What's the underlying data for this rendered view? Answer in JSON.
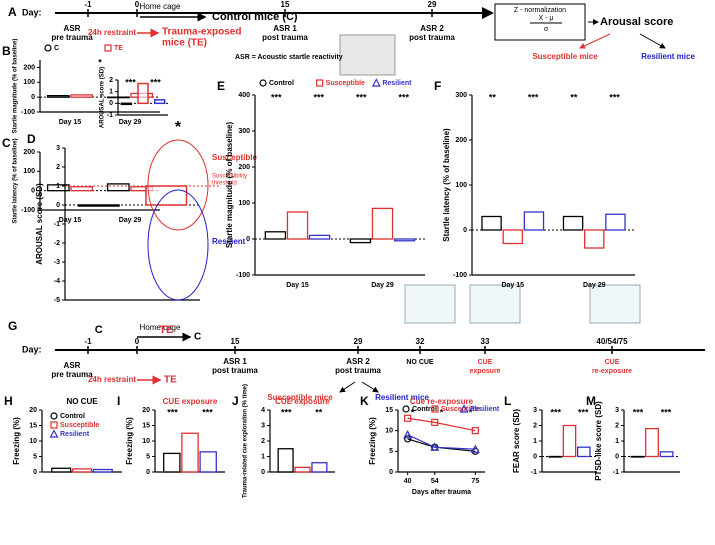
{
  "timeline_a": {
    "label": "A",
    "day": "Day:",
    "d_m1": "-1",
    "d0": "0",
    "d15": "15",
    "d29": "29",
    "home": "Home cage",
    "control": "Control mice (C)",
    "asr_pre": [
      "ASR",
      "pre trauma"
    ],
    "restraint": "24h restraint",
    "te": [
      "Trauma-exposed",
      "mice (TE)"
    ],
    "asr1": [
      "ASR 1",
      "post trauma"
    ],
    "asr_def": "ASR = Acoustic startle reactivity",
    "asr2": [
      "ASR 2",
      "post trauma"
    ],
    "znorm": "Z - normalization",
    "num": "X - μ",
    "den": "σ",
    "arousal": "Arousal score",
    "susceptible": "Susceptible mice",
    "resilient": "Resilient mice"
  },
  "timeline_g": {
    "label": "G",
    "day": "Day:",
    "d_m1": "-1",
    "d0": "0",
    "d15": "15",
    "d29": "29",
    "d32": "32",
    "d33": "33",
    "d40": "40/54/75",
    "home": "Home cage",
    "c": "C",
    "asr_pre": [
      "ASR",
      "pre trauma"
    ],
    "restraint": "24h restraint",
    "te": "TE",
    "asr1": [
      "ASR 1",
      "post trauma"
    ],
    "asr2": [
      "ASR 2",
      "post trauma"
    ],
    "nocue": "NO CUE",
    "cue": [
      "CUE",
      "exposure"
    ],
    "recue": [
      "CUE",
      "re-exposure"
    ],
    "susceptible": "Susceptible mice",
    "resilient": "Resilient  mice"
  },
  "charts": [
    {
      "label": "B",
      "type": "bar",
      "ylabel": "Startle magnitude (% of baseline)",
      "categories": [
        "Day 15",
        "Day 29"
      ],
      "series": [
        {
          "name": "C",
          "color": "#000000",
          "values": [
            10,
            0
          ]
        },
        {
          "name": "TE",
          "color": "#e03030",
          "values": [
            15,
            25
          ]
        }
      ],
      "ylim": [
        -100,
        250
      ],
      "yticks": [
        -100,
        0,
        100,
        200
      ],
      "legend": "top",
      "annotations": [
        "*"
      ]
    },
    {
      "label": "C",
      "type": "bar",
      "ylabel": "Startle latency (% of baseline)",
      "categories": [
        "Day 15",
        "Day 29"
      ],
      "series": [
        {
          "color": "#000000",
          "values": [
            30,
            35
          ]
        },
        {
          "color": "#e03030",
          "values": [
            20,
            20
          ]
        }
      ],
      "ylim": [
        -100,
        200
      ],
      "yticks": [
        -100,
        0,
        100,
        200
      ]
    },
    {
      "label": "D",
      "type": "bar",
      "ylabel": "AROUSAL score (SD)",
      "categories": [
        "C",
        "TE"
      ],
      "values": [
        0,
        1
      ],
      "colors": [
        "#000000",
        "#e03030"
      ],
      "ylim": [
        -5,
        3
      ],
      "yticks": [
        -5,
        -4,
        -3,
        -2,
        -1,
        0,
        1,
        2,
        3
      ],
      "threshold": 1,
      "notes": {
        "susceptible": "Susceptible",
        "threshold": [
          "Susceptibility",
          "threshold"
        ],
        "resilient": "Resilient",
        "star": "*"
      }
    },
    {
      "type": "bar",
      "ylabel": "AROUSAL score (SD)",
      "categories": [
        null,
        null,
        null
      ],
      "values": [
        0,
        1.7,
        0.3
      ],
      "colors": [
        "#000000",
        "#e03030",
        "#3333cc"
      ],
      "ylim": [
        -1,
        2
      ],
      "yticks": [
        -1,
        0,
        1,
        2
      ],
      "annotations": [
        "***",
        "***"
      ]
    },
    {
      "label": "E",
      "type": "bar",
      "ylabel": "Startle magnitude (% of baseline)",
      "categories": [
        "Day 15",
        "Day 29"
      ],
      "series": [
        {
          "name": "Control",
          "color": "#000000",
          "values": [
            20,
            -10
          ]
        },
        {
          "name": "Susceptible",
          "color": "#e03030",
          "values": [
            75,
            85
          ]
        },
        {
          "name": "Resilient",
          "color": "#3333cc",
          "values": [
            10,
            -5
          ]
        }
      ],
      "ylim": [
        -100,
        400
      ],
      "yticks": [
        -100,
        0,
        100,
        200,
        300,
        400
      ],
      "legend": "top",
      "annotations": [
        "***",
        "***",
        "***",
        "***"
      ]
    },
    {
      "label": "F",
      "type": "bar",
      "ylabel": "Startle latency (% of baseline)",
      "categories": [
        "Day 15",
        "Day 29"
      ],
      "series": [
        {
          "color": "#000000",
          "values": [
            30,
            30
          ]
        },
        {
          "color": "#e03030",
          "values": [
            -30,
            -40
          ]
        },
        {
          "color": "#3333cc",
          "values": [
            40,
            35
          ]
        }
      ],
      "ylim": [
        -100,
        300
      ],
      "yticks": [
        -100,
        0,
        100,
        200,
        300
      ],
      "annotations": [
        "**",
        "***",
        "**",
        "***"
      ]
    },
    {
      "label": "H",
      "type": "bar",
      "title": "NO CUE",
      "title_color": "#000000",
      "ylabel": "Freezing (%)",
      "categories": [
        null
      ],
      "series": [
        {
          "name": "Control",
          "color": "#000000",
          "values": [
            1.2
          ]
        },
        {
          "name": "Susceptible",
          "color": "#e03030",
          "values": [
            1.0
          ]
        },
        {
          "name": "Resilient",
          "color": "#3333cc",
          "values": [
            0.8
          ]
        }
      ],
      "ylim": [
        0,
        20
      ],
      "yticks": [
        0,
        5,
        10,
        15,
        20
      ],
      "legend": "inside"
    },
    {
      "label": "I",
      "type": "bar",
      "title": "CUE exposure",
      "title_color": "#e03030",
      "ylabel": "Freezing (%)",
      "categories": [
        null
      ],
      "series": [
        {
          "color": "#000000",
          "values": [
            6
          ]
        },
        {
          "color": "#e03030",
          "values": [
            12.5
          ]
        },
        {
          "color": "#3333cc",
          "values": [
            6.5
          ]
        }
      ],
      "ylim": [
        0,
        20
      ],
      "yticks": [
        0,
        5,
        10,
        15,
        20
      ],
      "annotations": [
        "***",
        "***"
      ]
    },
    {
      "label": "J",
      "type": "bar",
      "title": "CUE exposure",
      "title_color": "#e03030",
      "ylabel": "Trauma-related cue exploration (% time)",
      "categories": [
        null
      ],
      "series": [
        {
          "color": "#000000",
          "values": [
            1.5
          ]
        },
        {
          "color": "#e03030",
          "values": [
            0.3
          ]
        },
        {
          "color": "#3333cc",
          "values": [
            0.6
          ]
        }
      ],
      "ylim": [
        0,
        4
      ],
      "yticks": [
        0,
        1,
        2,
        3,
        4
      ],
      "annotations": [
        "***",
        "**"
      ]
    },
    {
      "label": "K",
      "type": "line",
      "title": "Cue re-exposure",
      "title_color": "#e03030",
      "ylabel": "Freezing (%)",
      "xlabel": "Days after trauma",
      "x": [
        40,
        54,
        75
      ],
      "xlim": [
        35,
        80
      ],
      "xticks": [
        40,
        54,
        75
      ],
      "series": [
        {
          "name": "Control",
          "color": "#000000",
          "values": [
            8,
            6,
            5
          ]
        },
        {
          "name": "Susceptible",
          "color": "#e03030",
          "values": [
            13,
            12,
            10
          ]
        },
        {
          "name": "Resilient",
          "color": "#3333cc",
          "values": [
            9,
            6,
            5.5
          ]
        }
      ],
      "ylim": [
        0,
        15
      ],
      "yticks": [
        0,
        5,
        10,
        15
      ],
      "legend": "top",
      "annotations": [
        "*",
        "*",
        "*"
      ]
    },
    {
      "label": "L",
      "type": "bar",
      "ylabel": "FEAR score (SD)",
      "categories": [
        null
      ],
      "series": [
        {
          "color": "#000000",
          "values": [
            0
          ]
        },
        {
          "color": "#e03030",
          "values": [
            2.0
          ]
        },
        {
          "color": "#3333cc",
          "values": [
            0.6
          ]
        }
      ],
      "ylim": [
        -1,
        3
      ],
      "yticks": [
        -1,
        0,
        1,
        2,
        3
      ],
      "annotations": [
        "***",
        "***"
      ]
    },
    {
      "label": "M",
      "type": "bar",
      "ylabel": "PTSD-like score (SD)",
      "categories": [
        null
      ],
      "series": [
        {
          "color": "#000000",
          "values": [
            0
          ]
        },
        {
          "color": "#e03030",
          "values": [
            1.8
          ]
        },
        {
          "color": "#3333cc",
          "values": [
            0.3
          ]
        }
      ],
      "ylim": [
        -1,
        3
      ],
      "yticks": [
        -1,
        0,
        1,
        2,
        3
      ],
      "annotations": [
        "***",
        "***"
      ]
    }
  ]
}
